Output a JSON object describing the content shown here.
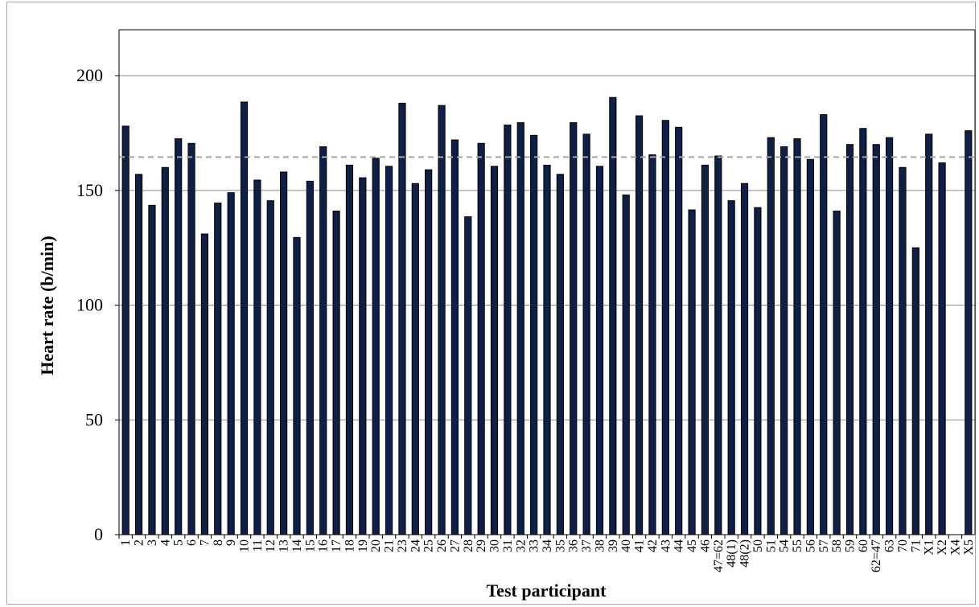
{
  "chart_data": {
    "type": "bar",
    "title": "",
    "xlabel": "Test participant",
    "ylabel": "Heart rate (b/min)",
    "ylim": [
      0,
      220
    ],
    "yticks": [
      0,
      50,
      100,
      150,
      200
    ],
    "grid": true,
    "legend": "none",
    "categories": [
      "1",
      "2",
      "3",
      "4",
      "5",
      "6",
      "7",
      "8",
      "9",
      "10",
      "11",
      "12",
      "13",
      "14",
      "15",
      "16",
      "17",
      "18",
      "19",
      "20",
      "21",
      "23",
      "24",
      "25",
      "26",
      "27",
      "28",
      "29",
      "30",
      "31",
      "32",
      "33",
      "34",
      "35",
      "36",
      "37",
      "38",
      "39",
      "40",
      "41",
      "42",
      "43",
      "44",
      "45",
      "46",
      "47=62",
      "48(1)",
      "48(2)",
      "50",
      "51",
      "54",
      "55",
      "56",
      "57",
      "58",
      "59",
      "60",
      "62=47",
      "63",
      "70",
      "71",
      "X1",
      "X2",
      "X4",
      "X5"
    ],
    "values": [
      178,
      157,
      143.5,
      160,
      172.5,
      170.5,
      131,
      144.5,
      149,
      188.5,
      154.5,
      145.5,
      158,
      129.5,
      154,
      169,
      141,
      161,
      155.5,
      164,
      160.5,
      188,
      153,
      159,
      187,
      172,
      138.5,
      170.5,
      160.5,
      178.5,
      179.5,
      174,
      161,
      157,
      179.5,
      174.5,
      160.5,
      190.5,
      148,
      182.5,
      165.5,
      180.5,
      177.5,
      141.5,
      161,
      165,
      145.5,
      153,
      142.5,
      173,
      169,
      172.5,
      163.5,
      183,
      141,
      170,
      177,
      170,
      173,
      160,
      125,
      174.5,
      162,
      null,
      176
    ],
    "reference_line": {
      "value": 164.5,
      "style": "dashed"
    },
    "bar_color": "#0f1f45",
    "reference_color": "#a6a6a6",
    "grid_color": "#8c8c8c"
  }
}
